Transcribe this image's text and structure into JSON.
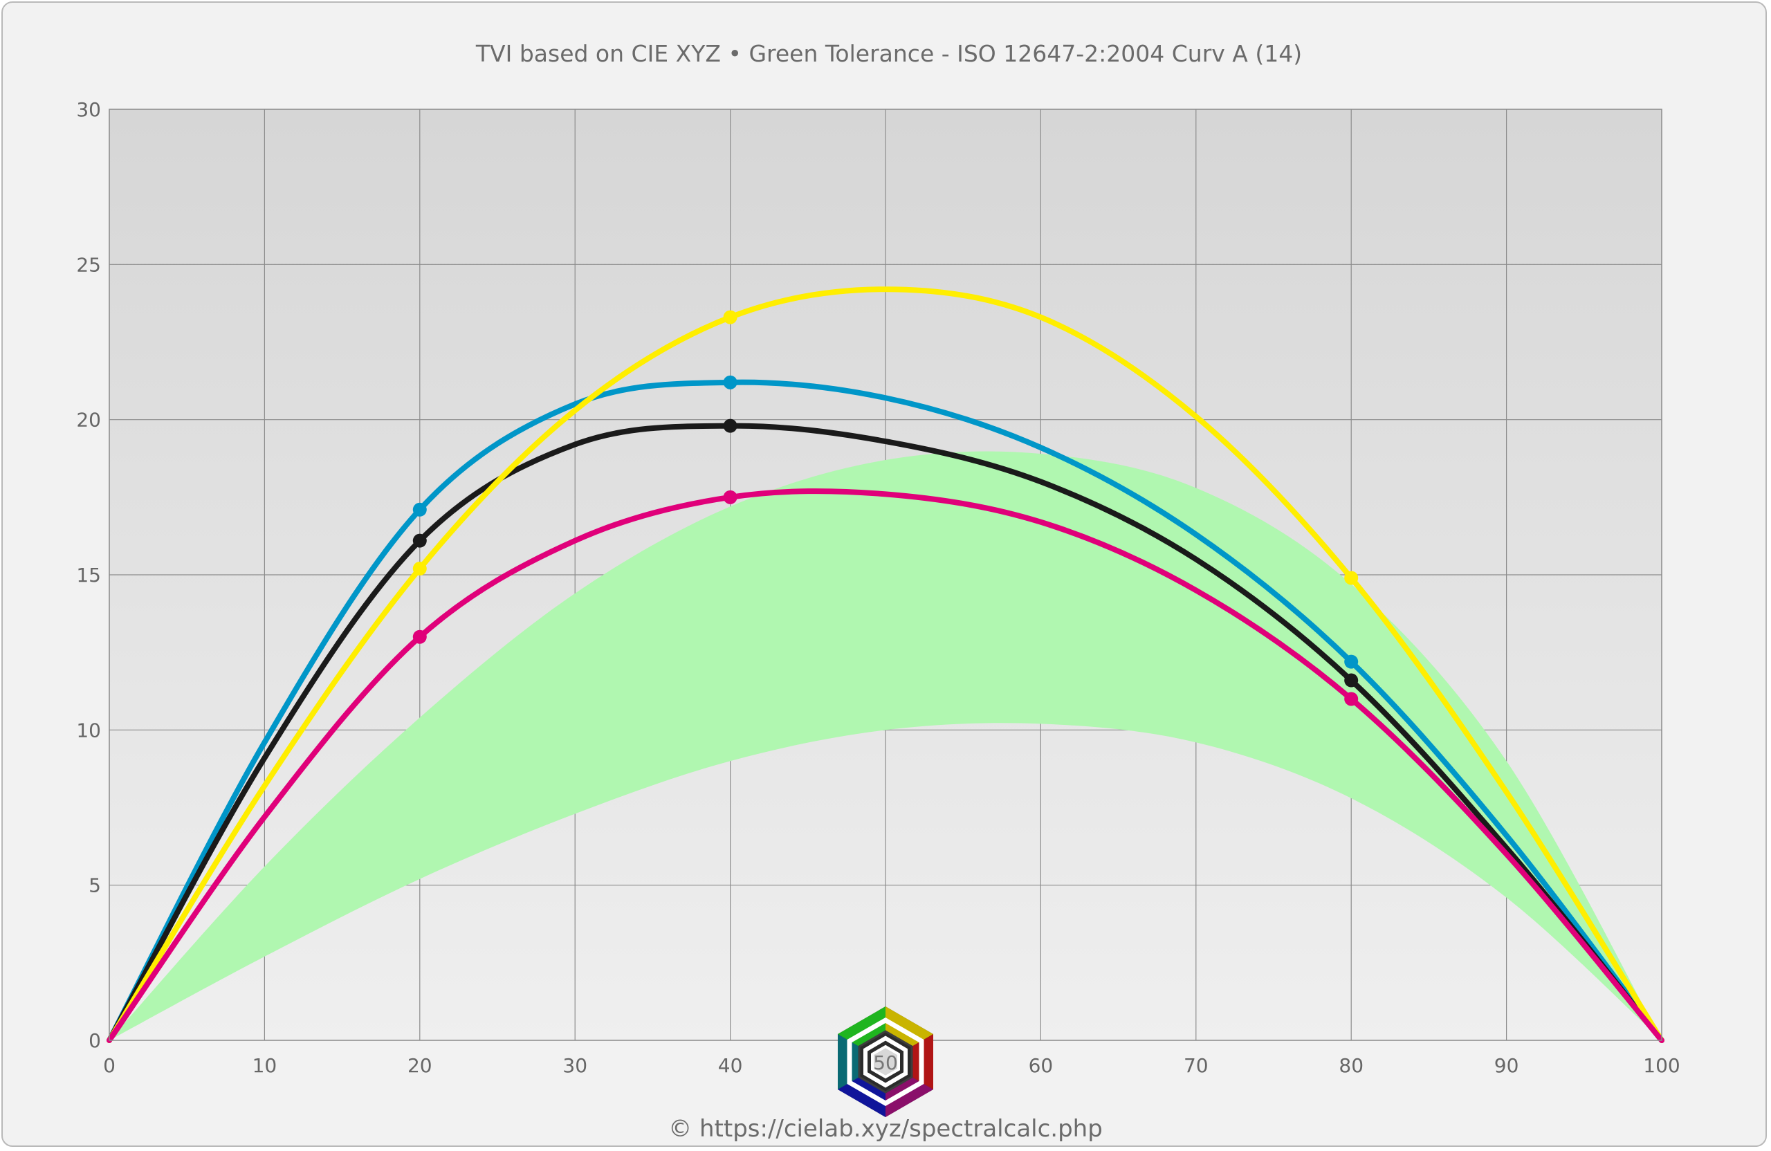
{
  "chart_data": {
    "type": "line",
    "title": "TVI based on CIE XYZ  •  Green Tolerance - ISO 12647-2:2004 Curv A (14)",
    "footer": "© https://cielab.xyz/spectralcalc.php",
    "logo_label": "50",
    "xlabel": "",
    "ylabel": "",
    "xlim": [
      0,
      100
    ],
    "ylim": [
      0,
      30
    ],
    "x_ticks": [
      0,
      10,
      20,
      30,
      40,
      50,
      60,
      70,
      80,
      90,
      100
    ],
    "y_ticks": [
      0,
      5,
      10,
      15,
      20,
      25,
      30
    ],
    "grid": true,
    "tolerance_band": {
      "color": "#b0f7b0",
      "x": [
        0,
        10,
        20,
        30,
        40,
        50,
        60,
        70,
        80,
        90,
        100
      ],
      "lower": [
        0,
        2.7,
        5.2,
        7.3,
        9.0,
        10.0,
        10.2,
        9.6,
        7.8,
        4.6,
        0
      ],
      "upper": [
        0,
        5.6,
        10.4,
        14.4,
        17.2,
        18.7,
        18.9,
        17.8,
        14.7,
        9.0,
        0
      ]
    },
    "series": [
      {
        "color": "#0096c8",
        "x": [
          0,
          10,
          20,
          30,
          40,
          50,
          60,
          70,
          80,
          90,
          100
        ],
        "values": [
          0,
          9.6,
          17.1,
          20.5,
          21.2,
          20.7,
          19.1,
          16.3,
          12.2,
          6.6,
          0
        ],
        "markers": [
          [
            20,
            17.1
          ],
          [
            40,
            21.2
          ],
          [
            80,
            12.2
          ]
        ]
      },
      {
        "color": "#1a1a1a",
        "x": [
          0,
          10,
          20,
          30,
          40,
          50,
          60,
          70,
          80,
          90,
          100
        ],
        "values": [
          0,
          9.1,
          16.1,
          19.2,
          19.8,
          19.3,
          18.0,
          15.5,
          11.6,
          6.2,
          0
        ],
        "markers": [
          [
            20,
            16.1
          ],
          [
            40,
            19.8
          ],
          [
            80,
            11.6
          ]
        ]
      },
      {
        "color": "#ffee00",
        "x": [
          0,
          10,
          20,
          30,
          40,
          50,
          60,
          70,
          80,
          90,
          100
        ],
        "values": [
          0,
          8.2,
          15.2,
          20.3,
          23.3,
          24.2,
          23.3,
          20.1,
          14.9,
          8.0,
          0
        ],
        "markers": [
          [
            20,
            15.2
          ],
          [
            40,
            23.3
          ],
          [
            80,
            14.9
          ]
        ]
      },
      {
        "color": "#e0007a",
        "x": [
          0,
          10,
          20,
          30,
          40,
          50,
          60,
          70,
          80,
          90,
          100
        ],
        "values": [
          0,
          7.2,
          13.0,
          16.1,
          17.5,
          17.6,
          16.7,
          14.5,
          11.0,
          6.0,
          0
        ],
        "markers": [
          [
            20,
            13.0
          ],
          [
            40,
            17.5
          ],
          [
            80,
            11.0
          ]
        ]
      }
    ]
  }
}
